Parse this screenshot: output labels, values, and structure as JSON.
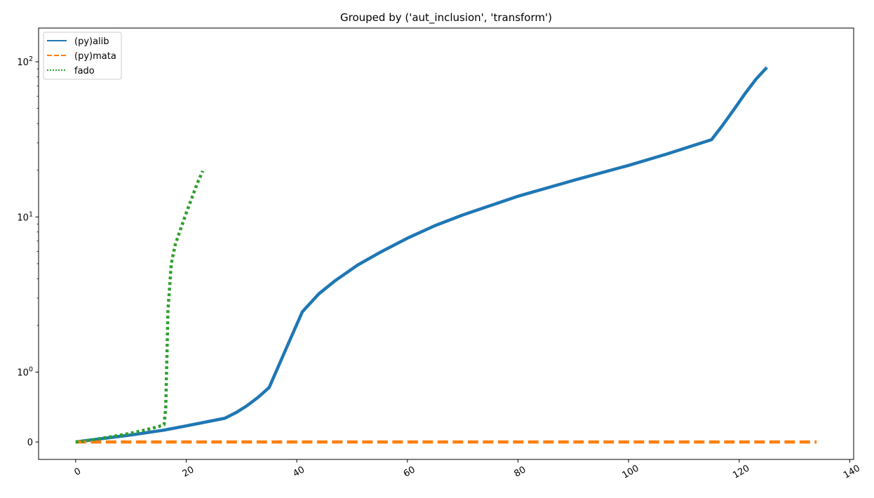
{
  "chart_data": {
    "type": "line",
    "title": "Grouped by ('aut_inclusion', 'transform')",
    "xlabel": "",
    "ylabel": "",
    "xlim": [
      -6.7,
      140.7
    ],
    "x_ticks": [
      0,
      20,
      40,
      60,
      80,
      100,
      120,
      140
    ],
    "x_tick_labels": [
      "0",
      "20",
      "40",
      "60",
      "80",
      "100",
      "120",
      "140"
    ],
    "yscale": "symlog",
    "y_linthresh": 1,
    "ylim": [
      -0.25,
      165
    ],
    "y_ticks": [
      {
        "value": 0,
        "base": "0",
        "exp": ""
      },
      {
        "value": 1,
        "base": "10",
        "exp": "0"
      },
      {
        "value": 10,
        "base": "10",
        "exp": "1"
      },
      {
        "value": 100,
        "base": "10",
        "exp": "2"
      }
    ],
    "grid": false,
    "legend_position": "top-left",
    "series": [
      {
        "name": "(py)alib",
        "color": "#1f77b4",
        "style": "solid",
        "points": [
          [
            0,
            0
          ],
          [
            5,
            0.05
          ],
          [
            10,
            0.1
          ],
          [
            16,
            0.17
          ],
          [
            20,
            0.23
          ],
          [
            27,
            0.34
          ],
          [
            29,
            0.42
          ],
          [
            31,
            0.52
          ],
          [
            33,
            0.64
          ],
          [
            35,
            0.78
          ],
          [
            38,
            1.4
          ],
          [
            41,
            2.45
          ],
          [
            44,
            3.2
          ],
          [
            47,
            3.9
          ],
          [
            51,
            4.9
          ],
          [
            55,
            5.9
          ],
          [
            60,
            7.3
          ],
          [
            65,
            8.8
          ],
          [
            70,
            10.3
          ],
          [
            80,
            13.6
          ],
          [
            90,
            17.2
          ],
          [
            100,
            21.5
          ],
          [
            107,
            25.5
          ],
          [
            115,
            31.5
          ],
          [
            117,
            39
          ],
          [
            119,
            49
          ],
          [
            121,
            62
          ],
          [
            123,
            77
          ],
          [
            125,
            92
          ]
        ]
      },
      {
        "name": "(py)mata",
        "color": "#ff7f0e",
        "style": "dashed",
        "points": [
          [
            0,
            0
          ],
          [
            134,
            0
          ]
        ]
      },
      {
        "name": "fado",
        "color": "#2ca02c",
        "style": "dotted",
        "points": [
          [
            0,
            0
          ],
          [
            3,
            0.03
          ],
          [
            6,
            0.07
          ],
          [
            9,
            0.11
          ],
          [
            12,
            0.16
          ],
          [
            14,
            0.2
          ],
          [
            15,
            0.22
          ],
          [
            16,
            0.25
          ],
          [
            16.3,
            0.5
          ],
          [
            16.7,
            2.5
          ],
          [
            17.3,
            5.0
          ],
          [
            18,
            6.6
          ],
          [
            19,
            8.4
          ],
          [
            20,
            10.6
          ],
          [
            21,
            13.2
          ],
          [
            22,
            16.5
          ],
          [
            23,
            19.8
          ]
        ]
      }
    ]
  }
}
